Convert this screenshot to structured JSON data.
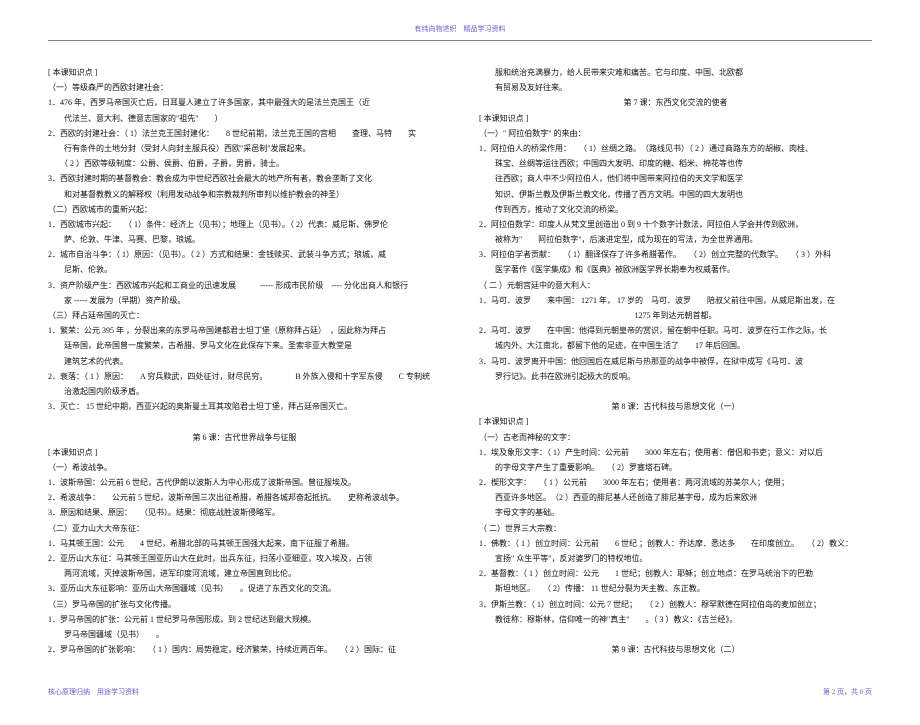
{
  "header": "有纬向物述织 精品学习资料",
  "footer_left": "核心原理归纳 用途学习资料",
  "footer_right": "第 2 页，共 6 页",
  "left": [
    "[ 本课知识点 ]",
    "（一）等级森严的西欧封建社会：",
    "1．476 年，西罗马帝国灭亡后，日耳曼人建立了许多国家，其中最强大的是法兰克国王（近",
    "　　代法兰、意大利、德意志国家的\"祖先\"　　）",
    "2．西欧的封建社会：（ 1）法兰克王国封建化：　　8 世纪前期，法兰克王国的宫相　　查理、马特　　实",
    "　　行有条件的土地分封（受封人向封主服兵役）西欧\"采邑制\"发展起来。",
    "　　（ 2 ）西欧等级制度：公爵、侯爵、伯爵，子爵，男爵，骑士。",
    "3．西欧封建时期的基督教会：教会成为中世纪西欧社会最大的地产所有者，教会垄断了文化",
    "　　和对基督教教义的解释权（利用发动战争和宗教裁判所审判以维护教会的神圣）",
    "（二）西欧城市的重新兴起：",
    "1．西欧城市兴起：　　（ 1）条件：经济上（见书）；地理上（见书）。（ 2）代表：威尼斯、佛罗伦",
    "　　萨、伦敦、牛津、马赛、巴黎，琅城。",
    "2．城市自治斗争：（ 1）原因：（见书）。（ 2 ）方式和结果：金钱赎买、武装斗争方式；琅城，威",
    "　　尼斯、伦敦。",
    "3．资产阶级产生：西欧城市兴起和工商业的迅速发展　　　----- 形成市民阶级　---- 分化出商人和银行",
    "　　家 ----- 发展为（早期）资产阶级。",
    "（三）拜占廷帝国的灭亡：",
    "1．繁荣：公元  395 年 ，分裂出来的东罗马帝国建都君士坦丁堡（原称拜占廷）　，因此称为拜占",
    "　　廷帝国，此帝国曾一度繁荣，古希腊、罗马文化在此保存下来。圣索非亚大教堂是",
    "　　建筑艺术的代表。",
    "2．衰落：（ 1 ）原因：　　A 穷兵黩武，四处征讨，财尽民穷。　　　　B 外族入侵和十字军东侵　　C  专制统",
    "　　治激起国内阶级矛盾。",
    "3．灭亡：  15 世纪中期，西亚兴起的奥斯曼土耳其攻陷君士坦丁堡，拜占廷帝国灭亡。",
    "",
    "第 6 课：古代世界战争与征服",
    "[ 本课知识点 ]",
    "（一）希波战争。",
    "1．波斯帝国：公元前 6 世纪，古代伊朗以波斯人为中心形成了波斯帝国。曾征服埃及。",
    "2．希波战争：　　公元前 5 世纪，波斯帝国三次出征希腊，希腊各城邦奋起抵抗。　　史称希波战争。",
    "3．原因和结果、原因：　　（见书）。结果：彻底战胜波斯侵略军。",
    "（二）亚力山大大帝东征：",
    "1．马其顿王国：公元　　4 世纪，希腊北部的马其顿王国强大起来，南下征服了希腊。",
    "2．亚历山大东征：马其顿王国亚历山大在此时，出兵东征，扫荡小亚细亚，攻入埃及，占领",
    "　　两河流域，灭掉波斯帝国，进军印度河流域，建立帝国直到比伦。",
    "3．亚历山大东征影响：亚历山大帝国疆域（见书）　　。促进了东西文化的交流。",
    "（三）罗马帝国的扩张与文化传播。",
    "1．罗马帝国的扩张：公元前 1 世纪罗马帝国形成，到 2 世纪达到最大规模。",
    "　　罗马帝国疆域（见书）　　。",
    "2．罗马帝国的扩张影响：　　（ 1 ）国内：局势稳定，经济繁荣，持续近两百年。　　（ 2 ）国际：征"
  ],
  "right": [
    "　　服和统治充满暴力，给人民带来灾难和痛苦。它与印度、中国、北欧都",
    "　　有贸易及友好往来。",
    "第 7 课：东西文化交流的使者",
    "[ 本课知识点 ]",
    "（一）\" 阿拉伯数字\" 的来由：",
    "1．阿拉伯人的桥梁作用：　　（ 1）丝绸之路。　（路线见书）（ 2 ）通过商路东方的胡椒、肉桂、",
    "　　珠宝、丝绸等运往西欧；中国四大发明、印度的糖、稻米、棉花等也传",
    "　　往西欧；商人中不少阿拉伯人，他们将中国带来阿拉伯的天文学和医学",
    "　　知识、伊斯兰教及伊斯兰教文化，传播了西方文明。中国的四大发明也",
    "　　传到西方，推动了文化交流的桥梁。",
    "2．阿拉伯数学：印度人从梵文里创造出 0 到 9 十个数字计数法，阿拉伯人学会并传到欧洲，",
    "　　被称为\"　　阿拉伯数字\"，后演进定型，成为现在的写法，为全世界通用。",
    "3．阿拉伯学者贡献：　　（ 1）翻译保存了许多希腊著作。　　（ 2）创立完整的代数学。　　（ 3 ）外科",
    "　　医学著作《医学集成》和《医典》被欧洲医学界长期奉为权威著作。",
    "（ 二 ）元朝宫廷中的意大利人：",
    "1．马可．波罗　　来中国：  1271 年， 17 岁的　马可．波罗　　陪叔父前往中国，从威尼斯出发，在",
    "1275 年到达元朝首都。",
    "2．马可．波罗　　在中国：他得到元朝皇帝的赏识，留在朝中任职。马可．波罗在行工作之际，长",
    "　　城内外、大江南北，都留下他的足迹，在中国生活了　　17 年后回国。",
    "3．马可．波罗离开中国：他回国后在威尼斯与热那亚的战争中被俘，在狱中成写《马可．波",
    "　　罗行记》。此书在欧洲引起极大的反响。",
    "",
    "第 8 课：古代科技与思想文化（一）",
    "[ 本课知识点 ]",
    "（一）古老而神秘的文字：",
    "1．埃及象形文字：（ 1）产生时间：公元前　　3000 年左右；使用者：僧侣和书吏；意义：对以后",
    "　　的字母文字产生了重要影响。　　（ 2）罗塞塔石碑。",
    "2．楔形文字：　　（ 1 ）公元前　　3000 年左右；使用者：两河流域的苏美尔人；使用；",
    "　　西亚许多地区。　（2 ）西亚的腓尼基人还创造了腓尼基字母，成为后来欧洲",
    "　　字母文字的基础。",
    "（ 二）世界三大宗教：",
    "1．佛教：（ 1 ）创立时间：公元前　　6 世纪 ；创教人：乔达摩．悉达多　　在印度创立。　　（ 2）教义：",
    "　　宣扬\" 众生平等\"，反对婆罗门的特权地位。",
    "2．基督教：（ 1 ）创立时间：公元　　1 世纪；创教人：耶稣；创立地点：在罗马统治下的巴勒",
    "　　斯坦地区。　　（ 2）传播： 11 世纪分裂为天主教、东正教。",
    "3．伊斯兰教：（ 1）创立时间：公元 7 世纪；　　（ 2 ）创教人：穆罕默德在阿拉伯岛的麦加创立；",
    "　　教徒称：穆斯林，信仰唯一的神\"真主\"　　。（ 3 ）教义：《吉兰经》。",
    "",
    "第  9 课：古代科技与思想文化（二）"
  ]
}
